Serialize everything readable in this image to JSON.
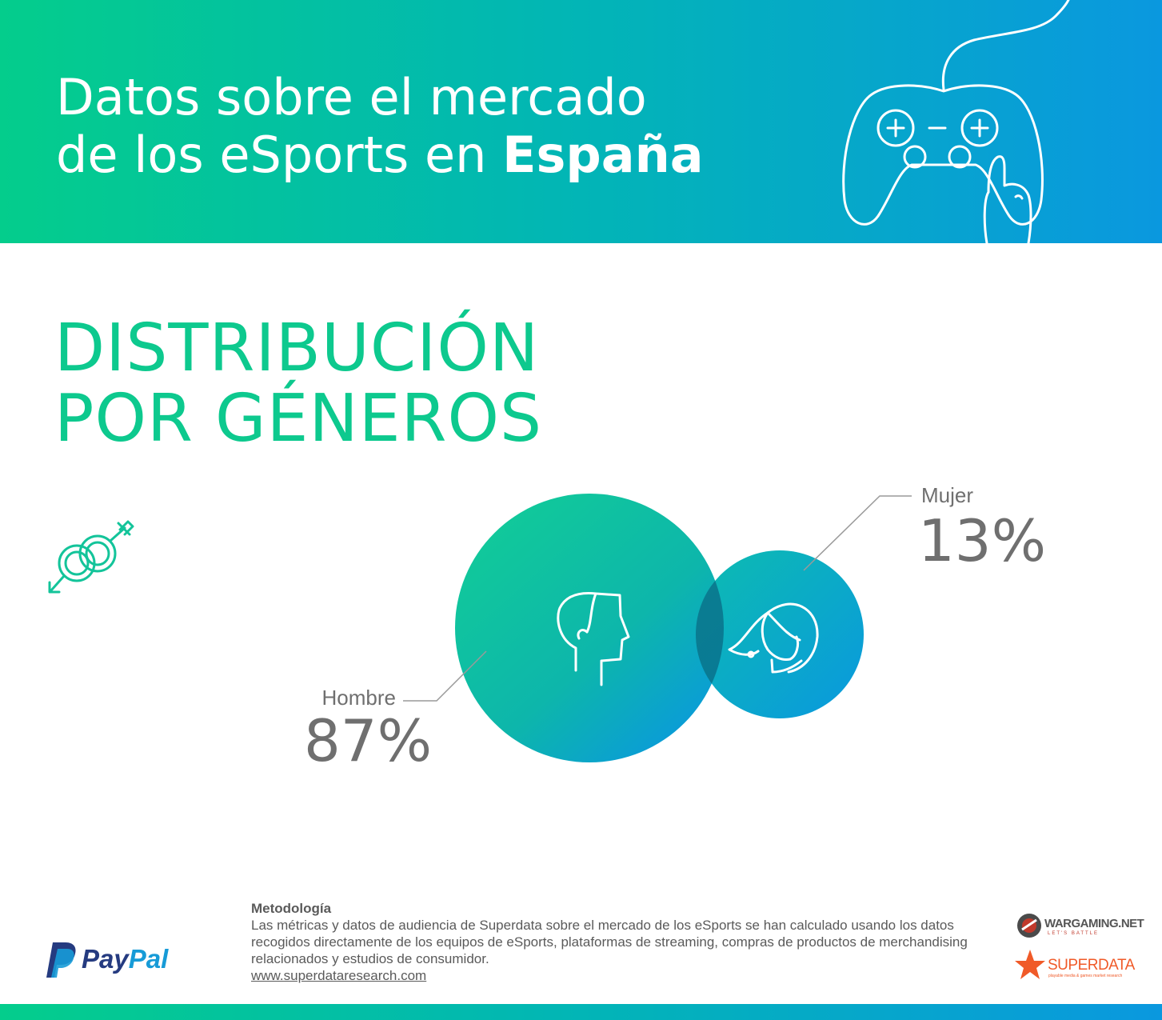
{
  "header": {
    "title_line1": "Datos sobre el mercado",
    "title_line2_prefix": "de los eSports en ",
    "title_line2_bold": "España"
  },
  "section": {
    "title_line1": "DISTRIBUCIÓN",
    "title_line2": "POR GÉNEROS"
  },
  "chart_data": {
    "type": "pie",
    "categories": [
      "Hombre",
      "Mujer"
    ],
    "values": [
      87,
      13
    ],
    "value_labels": [
      "87%",
      "13%"
    ],
    "colors": {
      "start": "#11c99a",
      "end": "#0a98df",
      "overlap": "#0a6a84",
      "label": "#6f6f6f",
      "leader": "#9a9a9a"
    }
  },
  "footer": {
    "methodology_title": "Metodología",
    "methodology_text": "Las métricas y datos de audiencia de Superdata sobre el mercado de los eSports se han calculado usando los datos recogidos directamente de los equipos de eSports, plataformas de streaming, compras de productos de merchandising relacionados y estudios de consumidor.",
    "link": "www.superdataresearch.com"
  },
  "logos": {
    "paypal_part1": "Pay",
    "paypal_part2": "Pal",
    "wargaming": "WARGAMING.NET",
    "wargaming_sub": "LET'S BATTLE",
    "superdata": "SUPERDATA",
    "superdata_sub": "playable media & games market research"
  },
  "icons": {
    "controller": "gamepad-icon",
    "gender": "gender-symbols-icon",
    "male_head": "male-head-icon",
    "female_head": "female-head-icon"
  }
}
